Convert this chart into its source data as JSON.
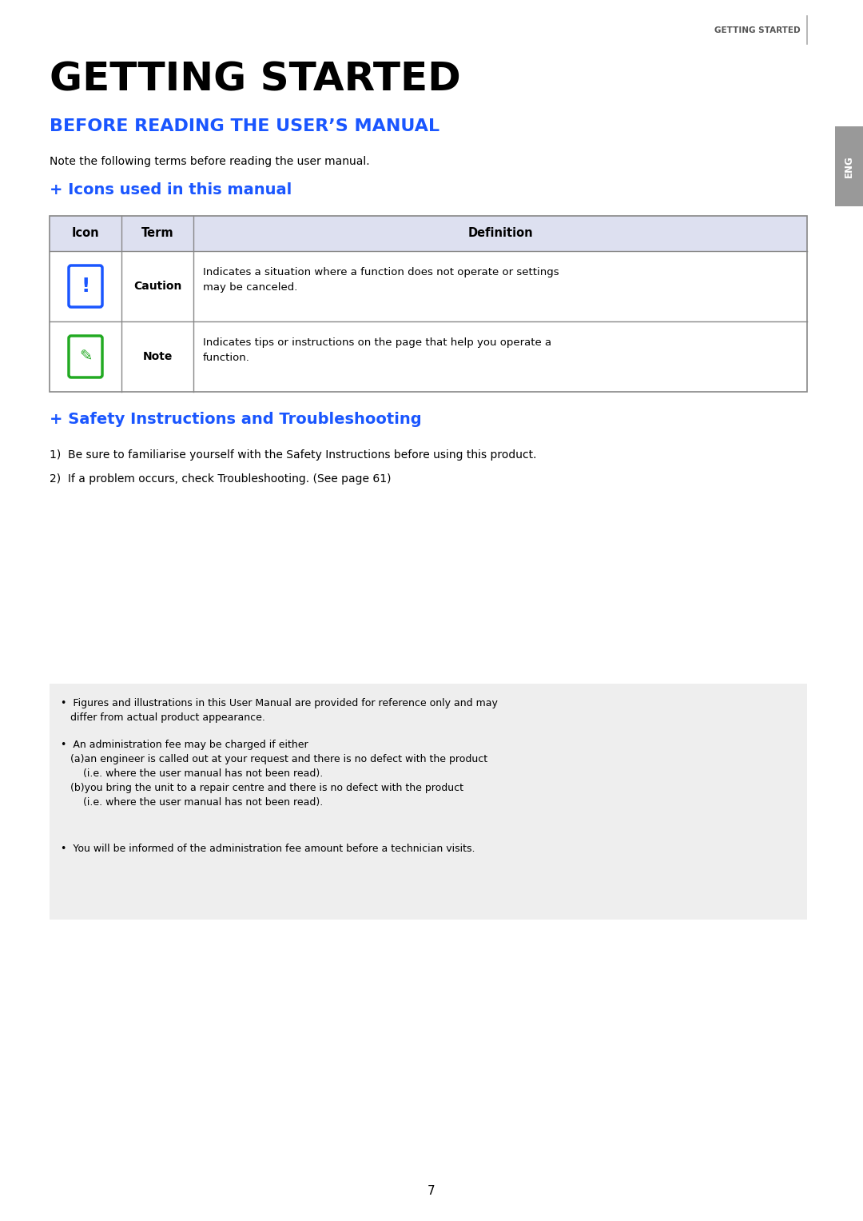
{
  "bg_color": "#ffffff",
  "header_text": "GETTING STARTED",
  "header_color": "#555555",
  "header_fontsize": 7.5,
  "main_title": "GETTING STARTED",
  "main_title_fontsize": 36,
  "main_title_color": "#000000",
  "section_title1": "BEFORE READING THE USER’S MANUAL",
  "section_title1_color": "#1a56ff",
  "section_title1_fontsize": 16,
  "intro_text": "Note the following terms before reading the user manual.",
  "intro_text_fontsize": 10,
  "subsection1_title": " Icons used in this manual",
  "subsection1_plus": "+",
  "subsection1_color": "#1a56ff",
  "subsection1_fontsize": 14,
  "table_header_bg": "#dde0f0",
  "table_header_fontsize": 10.5,
  "table_body_fontsize": 9.5,
  "caution_def": "Indicates a situation where a function does not operate or settings\nmay be canceled.",
  "note_def": "Indicates tips or instructions on the page that help you operate a\nfunction.",
  "subsection2_title": " Safety Instructions and Troubleshooting",
  "subsection2_plus": "+",
  "subsection2_color": "#1a56ff",
  "subsection2_fontsize": 14,
  "item1_text": "1)  Be sure to familiarise yourself with the Safety Instructions before using this product.",
  "item2_text": "2)  If a problem occurs, check Troubleshooting. (See page 61)",
  "items_fontsize": 10,
  "notice_box_bg": "#eeeeee",
  "notice_text1": "•  Figures and illustrations in this User Manual are provided for reference only and may\n   differ from actual product appearance.",
  "notice_text2": "•  An administration fee may be charged if either\n   (a)an engineer is called out at your request and there is no defect with the product\n       (i.e. where the user manual has not been read).\n   (b)you bring the unit to a repair centre and there is no defect with the product\n       (i.e. where the user manual has not been read).",
  "notice_text3": "•  You will be informed of the administration fee amount before a technician visits.",
  "notice_fontsize": 9.0,
  "page_number": "7",
  "eng_tab_color": "#999999",
  "eng_tab_text": "ENG",
  "caution_icon_color": "#1a56ff",
  "note_icon_color": "#22aa22"
}
